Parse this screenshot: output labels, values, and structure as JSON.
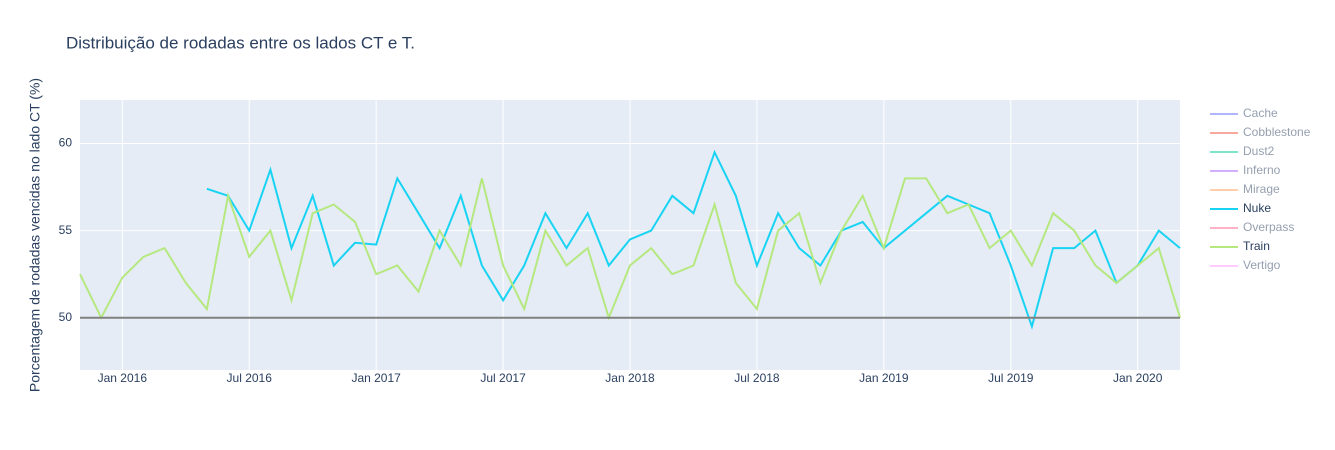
{
  "chart_data": {
    "type": "line",
    "title": "Distribuição de rodadas entre os lados CT e T.",
    "y_label": "Porcentagem de rodadas vencidas no lado CT (%)",
    "x": [
      "2015-11",
      "2015-12",
      "2016-01",
      "2016-02",
      "2016-03",
      "2016-04",
      "2016-05",
      "2016-06",
      "2016-07",
      "2016-08",
      "2016-09",
      "2016-10",
      "2016-11",
      "2016-12",
      "2017-01",
      "2017-02",
      "2017-03",
      "2017-04",
      "2017-05",
      "2017-06",
      "2017-07",
      "2017-08",
      "2017-09",
      "2017-10",
      "2017-11",
      "2017-12",
      "2018-01",
      "2018-02",
      "2018-03",
      "2018-04",
      "2018-05",
      "2018-06",
      "2018-07",
      "2018-08",
      "2018-09",
      "2018-10",
      "2018-11",
      "2018-12",
      "2019-01",
      "2019-02",
      "2019-03",
      "2019-04",
      "2019-05",
      "2019-06",
      "2019-07",
      "2019-08",
      "2019-09",
      "2019-10",
      "2019-11",
      "2019-12",
      "2020-01",
      "2020-02",
      "2020-03"
    ],
    "xlim": [
      "2015-11",
      "2020-03"
    ],
    "xticks": [
      {
        "value": "2016-01",
        "label": "Jan 2016"
      },
      {
        "value": "2016-07",
        "label": "Jul 2016"
      },
      {
        "value": "2017-01",
        "label": "Jan 2017"
      },
      {
        "value": "2017-07",
        "label": "Jul 2017"
      },
      {
        "value": "2018-01",
        "label": "Jan 2018"
      },
      {
        "value": "2018-07",
        "label": "Jul 2018"
      },
      {
        "value": "2019-01",
        "label": "Jan 2019"
      },
      {
        "value": "2019-07",
        "label": "Jul 2019"
      },
      {
        "value": "2020-01",
        "label": "Jan 2020"
      }
    ],
    "ylim": [
      47,
      62.5
    ],
    "yticks": [
      50,
      55,
      60
    ],
    "grid": true,
    "hline": {
      "y": 50,
      "color": "#808080"
    },
    "series": [
      {
        "name": "Cache",
        "color": "#636efa",
        "visible": false
      },
      {
        "name": "Cobblestone",
        "color": "#ef553b",
        "visible": false
      },
      {
        "name": "Dust2",
        "color": "#00cc96",
        "visible": false
      },
      {
        "name": "Inferno",
        "color": "#ab63fa",
        "visible": false
      },
      {
        "name": "Mirage",
        "color": "#ffa15a",
        "visible": false
      },
      {
        "name": "Nuke",
        "color": "#19d3f3",
        "visible": true,
        "values": [
          null,
          null,
          null,
          null,
          null,
          null,
          57.4,
          57,
          55,
          58.5,
          54,
          57,
          53,
          54.3,
          54.2,
          58,
          56,
          54,
          57,
          53,
          51,
          53,
          56,
          54,
          56,
          53,
          54.5,
          55,
          57,
          56,
          59.5,
          57,
          53,
          56,
          54,
          53,
          55,
          55.5,
          54,
          55,
          56,
          57,
          56.5,
          56,
          53,
          49.5,
          54,
          54,
          55,
          52,
          53,
          55,
          54
        ]
      },
      {
        "name": "Overpass",
        "color": "#ff6692",
        "visible": false
      },
      {
        "name": "Train",
        "color": "#b6e880",
        "visible": true,
        "values": [
          52.5,
          50,
          52.3,
          53.5,
          54,
          52,
          50.5,
          57,
          53.5,
          55,
          51,
          56,
          56.5,
          55.5,
          52.5,
          53,
          51.5,
          55,
          53,
          58,
          53,
          50.5,
          55,
          53,
          54,
          50,
          53,
          54,
          52.5,
          53,
          56.5,
          52,
          50.5,
          55,
          56,
          52,
          55,
          57,
          54,
          58,
          58,
          56,
          56.5,
          54,
          55,
          53,
          56,
          55,
          53,
          52,
          53,
          54,
          50
        ]
      },
      {
        "name": "Vertigo",
        "color": "#ff97ff",
        "visible": false
      }
    ]
  }
}
